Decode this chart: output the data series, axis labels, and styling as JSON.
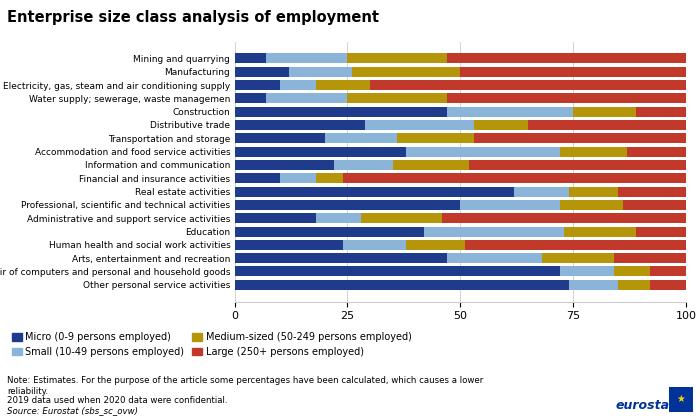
{
  "title": "Enterprise size class analysis of employment",
  "categories": [
    "Mining and quarrying",
    "Manufacturing",
    "Electricity, gas, steam and air conditioning supply",
    "Water supply; sewerage, waste managemen",
    "Construction",
    "Distributive trade",
    "Transportation and storage",
    "Accommodation and food service activities",
    "Information and communication",
    "Financial and insurance activities",
    "Real estate activities",
    "Professional, scientific and technical activities",
    "Administrative and support service activities",
    "Education",
    "Human health and social work activities",
    "Arts, entertainment and recreation",
    "Repair of computers and personal and household goods",
    "Other personal service activities"
  ],
  "micro": [
    7,
    12,
    10,
    7,
    47,
    29,
    20,
    38,
    22,
    10,
    62,
    50,
    18,
    42,
    24,
    47,
    72,
    74
  ],
  "small": [
    18,
    14,
    8,
    18,
    28,
    24,
    16,
    34,
    13,
    8,
    12,
    22,
    10,
    31,
    14,
    21,
    12,
    11
  ],
  "medium": [
    22,
    24,
    12,
    22,
    14,
    12,
    17,
    15,
    17,
    6,
    11,
    14,
    18,
    16,
    13,
    16,
    8,
    7
  ],
  "large": [
    53,
    50,
    70,
    53,
    11,
    35,
    47,
    13,
    48,
    76,
    15,
    14,
    54,
    11,
    49,
    16,
    8,
    8
  ],
  "colors": {
    "micro": "#1f3b8c",
    "small": "#8ab4d8",
    "medium": "#b5960a",
    "large": "#c0392b"
  },
  "legend_labels": [
    "Micro (0-9 persons employed)",
    "Small (10-49 persons employed)",
    "Medium-sized (50-249 persons employed)",
    "Large (250+ persons employed)"
  ],
  "xlim": [
    0,
    100
  ],
  "xticks": [
    0,
    25,
    50,
    75,
    100
  ],
  "note_line1": "Note: Estimates. For the purpose of the article some percentages have been calculated, which causes a lower",
  "note_line2": "reliability.",
  "note_line3": "2019 data used when 2020 data were confidential.",
  "note_line4": "Source: Eurostat (sbs_sc_ovw)"
}
